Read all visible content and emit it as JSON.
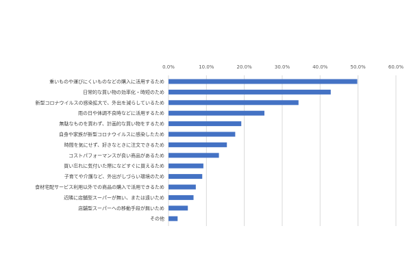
{
  "chart_data": {
    "type": "bar",
    "orientation": "horizontal",
    "categories": [
      "重いものや運びにくいものなどの購入に活用するため",
      "日常的な買い物の効率化・時短のため",
      "新型コロナウイルスの感染拡大で、外出を減らしているため",
      "雨の日や体調不良時などに活用するため",
      "無駄なものを買わず、計画的な買い物をするため",
      "自身や家族が新型コロナウイルスに感染したため",
      "時間を気にせず、好きなときに注文できるため",
      "コストパフォーマンスが良い商品があるため",
      "買い忘れに気付いた際になどすぐに買えるため",
      "子育てや介護など、外出がしづらい環境のため",
      "食材宅配サービス利用以外での商品の購入で活用できるため",
      "近隣に店舗型スーパーが無い、または遠いため",
      "店舗型スーパーへの移動手段が無いため",
      "その他"
    ],
    "values": [
      49.8,
      42.8,
      34.3,
      25.3,
      19.2,
      17.6,
      15.4,
      13.3,
      9.2,
      8.9,
      7.2,
      6.6,
      5.1,
      2.4
    ],
    "ticks": [
      "0.0%",
      "10.0%",
      "20.0%",
      "30.0%",
      "40.0%",
      "50.0%",
      "60.0%"
    ],
    "xlim": [
      0,
      60
    ],
    "unit": "%",
    "grid": true,
    "bar_color": "#4472c4"
  }
}
